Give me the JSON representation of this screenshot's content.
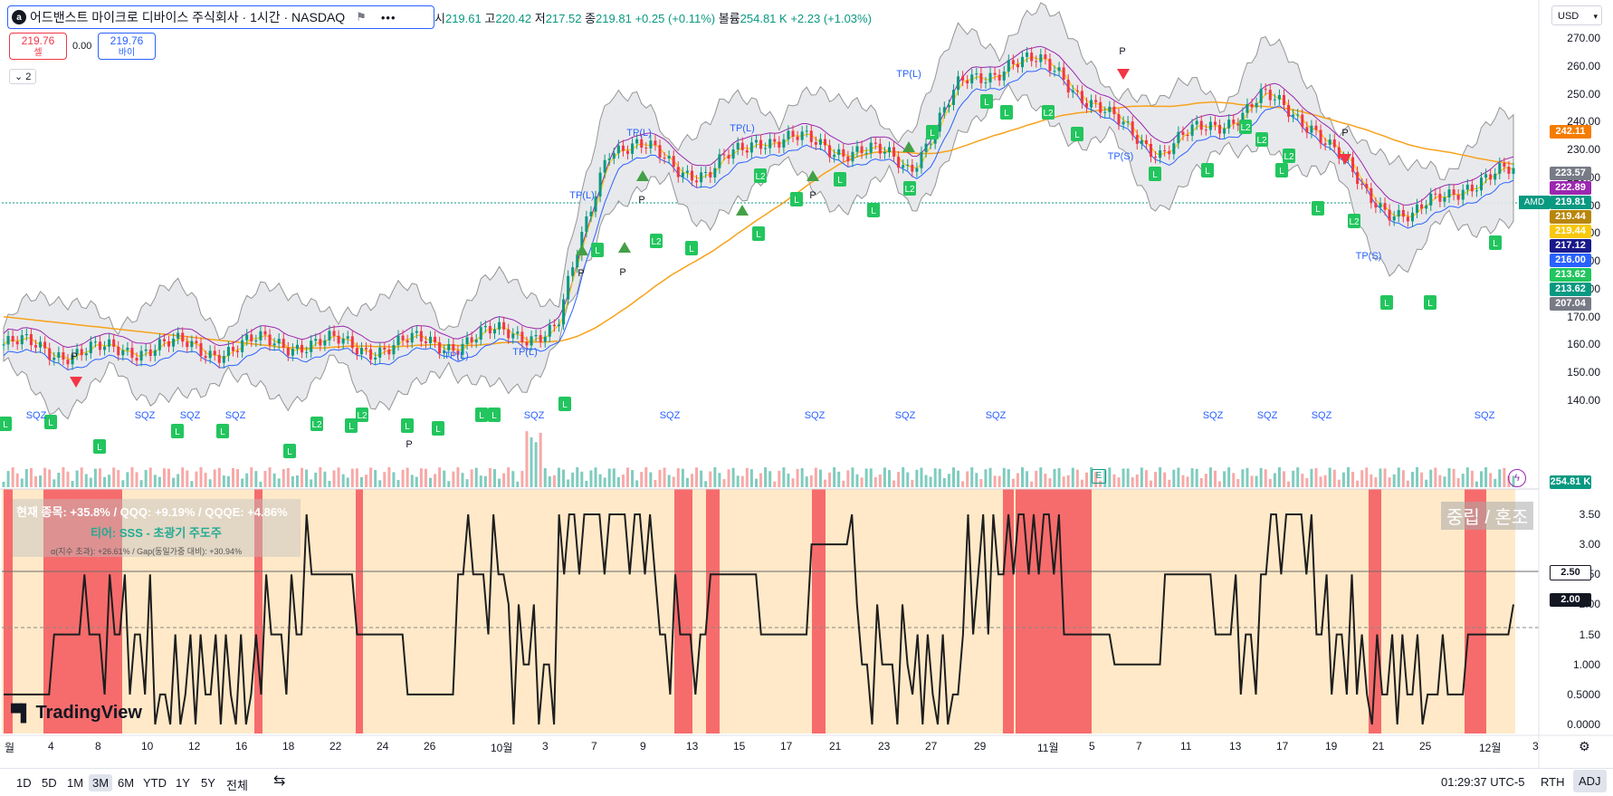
{
  "header": {
    "symbol_name": "어드밴스트 마이크로 디바이스 주식회사 · 1시간 · NASDAQ",
    "logo_letter": "a",
    "flag_icon": "flag-icon",
    "more_icon": "more-dots-icon",
    "ohlc": {
      "open_label": "시",
      "open": "219.61",
      "high_label": "고",
      "high": "220.42",
      "low_label": "저",
      "low": "217.52",
      "close_label": "종",
      "close": "219.81",
      "change": "+0.25 (+0.11%)",
      "volume_label": "볼륨",
      "volume": "254.81 K",
      "volume_change": "+2.23 (+1.03%)"
    },
    "sell": {
      "price": "219.76",
      "label": "셀"
    },
    "buy": {
      "price": "219.76",
      "label": "바이"
    },
    "spread": "0.00",
    "collapse_label": "2",
    "currency": "USD"
  },
  "price_axis": {
    "labels": [
      "270.00",
      "260.00",
      "250.00",
      "240.00",
      "230.00",
      "220.00",
      "210.00",
      "200.00",
      "190.00",
      "180.00",
      "170.00",
      "160.00",
      "150.00",
      "140.00"
    ],
    "tags": [
      {
        "value": "242.11",
        "color": "#f57c00"
      },
      {
        "value": "223.57",
        "color": "#787b86"
      },
      {
        "value": "222.89",
        "color": "#9c27b0"
      },
      {
        "value": "219.81",
        "color": "#089981"
      },
      {
        "value": "219.44",
        "color": "#b8860b"
      },
      {
        "value": "219.44",
        "color": "#f9c80e"
      },
      {
        "value": "217.12",
        "color": "#1a1a8c"
      },
      {
        "value": "216.00",
        "color": "#2962ff"
      },
      {
        "value": "213.62",
        "color": "#22c55e"
      },
      {
        "value": "213.62",
        "color": "#089981"
      },
      {
        "value": "207.04",
        "color": "#787b86"
      }
    ],
    "symbol_tag": "AMD",
    "volume_tag": "254.81 K"
  },
  "osc_axis": {
    "labels": [
      "3.50",
      "3.00",
      "2.50",
      "2.00",
      "1.50",
      "1.000",
      "0.5000",
      "0.0000"
    ],
    "highlight_250": "2.50",
    "highlight_200": "2.00"
  },
  "time_axis": {
    "labels": [
      "월",
      "4",
      "8",
      "10",
      "12",
      "16",
      "18",
      "22",
      "24",
      "26",
      "10월",
      "3",
      "7",
      "9",
      "13",
      "15",
      "17",
      "21",
      "23",
      "27",
      "29",
      "11월",
      "5",
      "7",
      "11",
      "13",
      "17",
      "19",
      "21",
      "25",
      "12월",
      "3"
    ]
  },
  "info_panel": {
    "line1": "현재 종목: +35.8% / QQQ: +9.19% / QQQE: +4.86%",
    "line2": "티어: SSS - 초광기 주도주",
    "line3": "α(지수 초과): +26.61% / Gap(동일가중 대비): +30.94%",
    "regime": "중립 / 혼조"
  },
  "markers": {
    "tp_long": "TP(L)",
    "tp_short": "TP(S)",
    "profit": "P",
    "long": "L",
    "long2": "L2",
    "squeeze": "SQZ",
    "earnings": "E"
  },
  "bottom_bar": {
    "timeframes": [
      "1D",
      "5D",
      "1M",
      "3M",
      "6M",
      "YTD",
      "1Y",
      "5Y",
      "전체"
    ],
    "active": "3M",
    "clock": "01:29:37 UTC-5",
    "rth": "RTH",
    "adj": "ADJ"
  },
  "branding": "TradingView",
  "colors": {
    "up": "#089981",
    "down": "#f23645",
    "bollinger_fill": "#e6e7ea",
    "ma_long": "#f7a21b",
    "osc_bg": "#ffe9c8",
    "osc_red": "#f23645"
  },
  "chart_data": {
    "type": "line",
    "title": "",
    "ylabel": "",
    "x": [
      "9/1",
      "9/4",
      "9/8",
      "9/10",
      "9/12",
      "9/16",
      "9/18",
      "9/22",
      "9/24",
      "9/26",
      "10/1",
      "10/3",
      "10/7",
      "10/9",
      "10/13",
      "10/15",
      "10/17",
      "10/21",
      "10/23",
      "10/27",
      "10/29",
      "11/3",
      "11/5",
      "11/7",
      "11/11",
      "11/13",
      "11/17",
      "11/19",
      "11/21",
      "11/25",
      "12/1"
    ],
    "series": [
      {
        "values": [
          160,
          158,
          157,
          160,
          158,
          160,
          161,
          159,
          160,
          161,
          164,
          165,
          232,
          228,
          220,
          235,
          232,
          230,
          224,
          252,
          262,
          258,
          240,
          230,
          238,
          248,
          240,
          215,
          205,
          218,
          221
        ]
      }
    ],
    "ylim": [
      135,
      275
    ],
    "oscillator": {
      "ylim": [
        0,
        3.6
      ],
      "values": [
        0.5,
        1.5,
        1.5,
        0.5,
        0.5,
        1.5,
        2.5,
        1.5,
        0.5,
        2.5,
        1.0,
        3.5,
        3.5,
        1.5,
        2.5,
        1.5,
        3.0,
        1.0,
        0.5,
        2.5,
        3.5,
        1.5,
        1.0,
        2.5,
        1.5,
        3.5,
        1.5,
        0.5,
        0.5,
        1.5,
        2.0
      ]
    }
  }
}
